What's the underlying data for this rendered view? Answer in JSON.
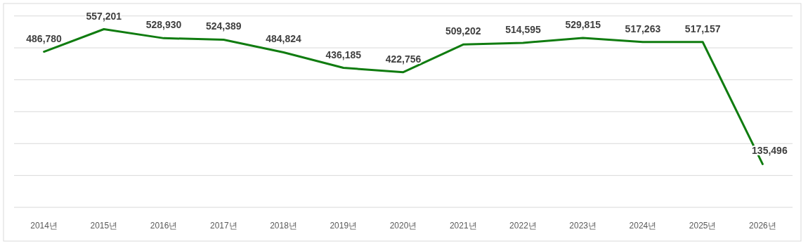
{
  "chart_data": {
    "type": "line",
    "categories": [
      "2014년",
      "2015년",
      "2016년",
      "2017년",
      "2018년",
      "2019년",
      "2020년",
      "2021년",
      "2022년",
      "2023년",
      "2024년",
      "2025년",
      "2026년"
    ],
    "series": [
      {
        "color": "#107c10",
        "values": [
          486780,
          557201,
          528930,
          524389,
          484824,
          436185,
          422756,
          509202,
          514595,
          529815,
          517263,
          517157,
          135496
        ],
        "value_labels": [
          "486,780",
          "557,201",
          "528,930",
          "524,389",
          "484,824",
          "436,185",
          "422,756",
          "509,202",
          "514,595",
          "529,815",
          "517,263",
          "517,157",
          "135,496"
        ]
      }
    ],
    "tick_labels": "x",
    "grid": "y",
    "marker": "none",
    "line_style": "solid"
  }
}
